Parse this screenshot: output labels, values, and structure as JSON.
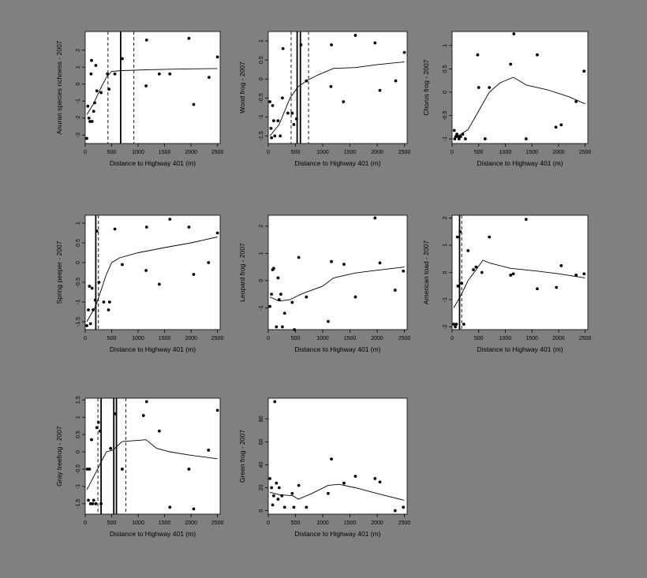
{
  "figure": {
    "background": "#808080",
    "panel_background": "#ffffff",
    "ink": "#000000"
  },
  "chart_data": [
    {
      "id": "p1",
      "type": "scatter",
      "ylabel": "Anuran species richness - 2007",
      "xlabel": "Distance to Highway 401 (m)",
      "xlim": [
        0,
        2550
      ],
      "ylim": [
        -3.5,
        3.1
      ],
      "xticks": [
        0,
        500,
        1000,
        1500,
        2000,
        2500
      ],
      "yticks": [
        -3,
        -2,
        -1,
        0,
        1,
        2
      ],
      "points": [
        [
          30,
          -3.2
        ],
        [
          50,
          -1.3
        ],
        [
          70,
          -2
        ],
        [
          90,
          -2.2
        ],
        [
          110,
          0.6
        ],
        [
          120,
          1.4
        ],
        [
          130,
          -2.2
        ],
        [
          160,
          -1.6
        ],
        [
          180,
          -1.1
        ],
        [
          200,
          1.1
        ],
        [
          220,
          -0.4
        ],
        [
          300,
          -0.5
        ],
        [
          420,
          0.6
        ],
        [
          450,
          -0.3
        ],
        [
          560,
          0.6
        ],
        [
          700,
          1.5
        ],
        [
          1150,
          -0.1
        ],
        [
          1160,
          2.6
        ],
        [
          1400,
          0.6
        ],
        [
          1600,
          0.6
        ],
        [
          1960,
          2.7
        ],
        [
          2050,
          -1.2
        ],
        [
          2340,
          0.4
        ],
        [
          2500,
          1.6
        ]
      ],
      "smooth": [
        [
          30,
          -1.8
        ],
        [
          150,
          -1.2
        ],
        [
          300,
          -0.2
        ],
        [
          400,
          0.4
        ],
        [
          500,
          0.75
        ],
        [
          700,
          0.8
        ],
        [
          1200,
          0.85
        ],
        [
          1600,
          0.88
        ],
        [
          2000,
          0.9
        ],
        [
          2500,
          0.92
        ]
      ],
      "vlines_solid": [
        670
      ],
      "vlines_dashed": [
        430,
        920
      ]
    },
    {
      "id": "p2",
      "type": "scatter",
      "ylabel": "Wood frog - 2007",
      "xlabel": "Distance to Highway 401 (m)",
      "xlim": [
        0,
        2550
      ],
      "ylim": [
        -1.7,
        1.25
      ],
      "xticks": [
        0,
        500,
        1000,
        1500,
        2000,
        2500
      ],
      "yticks": [
        -1.5,
        -1,
        -0.5,
        0,
        0.5,
        1
      ],
      "points": [
        [
          30,
          -0.6
        ],
        [
          50,
          -1.3
        ],
        [
          60,
          -1.55
        ],
        [
          80,
          -0.7
        ],
        [
          100,
          -1.1
        ],
        [
          120,
          -1.5
        ],
        [
          180,
          -1.1
        ],
        [
          220,
          -1.5
        ],
        [
          260,
          -0.5
        ],
        [
          270,
          0.8
        ],
        [
          360,
          -0.9
        ],
        [
          440,
          -0.9
        ],
        [
          470,
          -1.2
        ],
        [
          520,
          -1.05
        ],
        [
          600,
          0.9
        ],
        [
          700,
          -0.05
        ],
        [
          1150,
          -0.2
        ],
        [
          1160,
          0.9
        ],
        [
          1380,
          -0.6
        ],
        [
          1600,
          1.15
        ],
        [
          1960,
          0.95
        ],
        [
          2050,
          -0.3
        ],
        [
          2340,
          -0.05
        ],
        [
          2500,
          0.7
        ]
      ],
      "smooth": [
        [
          30,
          -1.5
        ],
        [
          200,
          -1.2
        ],
        [
          400,
          -0.5
        ],
        [
          550,
          -0.2
        ],
        [
          700,
          -0.05
        ],
        [
          900,
          0.1
        ],
        [
          1200,
          0.28
        ],
        [
          1600,
          0.3
        ],
        [
          2000,
          0.38
        ],
        [
          2500,
          0.45
        ]
      ],
      "vlines_solid": [
        530,
        590
      ],
      "vlines_dashed": [
        420,
        740
      ]
    },
    {
      "id": "p3",
      "type": "scatter",
      "ylabel": "Chorus frog - 2007",
      "xlabel": "Distance to Highway 401 (m)",
      "xlim": [
        0,
        2550
      ],
      "ylim": [
        -1.1,
        1.3
      ],
      "xticks": [
        0,
        500,
        1000,
        1500,
        2000,
        2500
      ],
      "yticks": [
        -1,
        -0.5,
        0,
        0.5,
        1
      ],
      "points": [
        [
          40,
          -0.82
        ],
        [
          50,
          -1
        ],
        [
          70,
          -0.95
        ],
        [
          90,
          -0.9
        ],
        [
          110,
          -0.95
        ],
        [
          130,
          -1
        ],
        [
          160,
          -0.95
        ],
        [
          200,
          -0.9
        ],
        [
          250,
          -1
        ],
        [
          480,
          0.8
        ],
        [
          500,
          0.1
        ],
        [
          620,
          -1
        ],
        [
          700,
          0.1
        ],
        [
          1100,
          0.6
        ],
        [
          1160,
          1.25
        ],
        [
          1390,
          -1
        ],
        [
          1600,
          0.8
        ],
        [
          1950,
          -0.75
        ],
        [
          2050,
          -0.7
        ],
        [
          2330,
          -0.2
        ],
        [
          2480,
          0.45
        ]
      ],
      "smooth": [
        [
          30,
          -1
        ],
        [
          300,
          -0.8
        ],
        [
          500,
          -0.4
        ],
        [
          700,
          0
        ],
        [
          900,
          0.2
        ],
        [
          1150,
          0.32
        ],
        [
          1400,
          0.15
        ],
        [
          1800,
          0.05
        ],
        [
          2200,
          -0.1
        ],
        [
          2500,
          -0.25
        ]
      ],
      "vlines_solid": [],
      "vlines_dashed": []
    },
    {
      "id": "p4",
      "type": "scatter",
      "ylabel": "Spring peeper - 2007",
      "xlabel": "Distance to Highway 401 (m)",
      "xlim": [
        0,
        2550
      ],
      "ylim": [
        -1.7,
        1.2
      ],
      "xticks": [
        0,
        500,
        1000,
        1500,
        2000,
        2500
      ],
      "yticks": [
        -1.5,
        -1,
        -0.5,
        0,
        0.5,
        1
      ],
      "points": [
        [
          30,
          -1.6
        ],
        [
          60,
          -1.2
        ],
        [
          80,
          -0.6
        ],
        [
          100,
          -1.55
        ],
        [
          130,
          -0.65
        ],
        [
          150,
          -1.2
        ],
        [
          190,
          -0.95
        ],
        [
          220,
          0.8
        ],
        [
          260,
          -0.5
        ],
        [
          350,
          -1.0
        ],
        [
          440,
          -1.2
        ],
        [
          460,
          -1.0
        ],
        [
          560,
          0.85
        ],
        [
          700,
          -0.05
        ],
        [
          1150,
          -0.2
        ],
        [
          1160,
          0.9
        ],
        [
          1400,
          -0.55
        ],
        [
          1600,
          1.1
        ],
        [
          1960,
          0.9
        ],
        [
          2050,
          -0.3
        ],
        [
          2330,
          0.0
        ],
        [
          2500,
          0.75
        ]
      ],
      "smooth": [
        [
          30,
          -1.5
        ],
        [
          200,
          -1.1
        ],
        [
          400,
          -0.3
        ],
        [
          500,
          0.0
        ],
        [
          650,
          0.12
        ],
        [
          1000,
          0.25
        ],
        [
          1500,
          0.38
        ],
        [
          2000,
          0.5
        ],
        [
          2500,
          0.65
        ]
      ],
      "vlines_solid": [
        200
      ],
      "vlines_dashed": [
        250
      ]
    },
    {
      "id": "p5",
      "type": "scatter",
      "ylabel": "Leopard frog - 2007",
      "xlabel": "Distance to Highway 401 (m)",
      "xlim": [
        0,
        2550
      ],
      "ylim": [
        -1.8,
        2.4
      ],
      "xticks": [
        0,
        500,
        1000,
        1500,
        2000,
        2500
      ],
      "yticks": [
        -1,
        0,
        1,
        2
      ],
      "points": [
        [
          30,
          -0.95
        ],
        [
          60,
          -0.5
        ],
        [
          80,
          0.4
        ],
        [
          100,
          0.45
        ],
        [
          150,
          -1.7
        ],
        [
          180,
          0.1
        ],
        [
          200,
          -0.7
        ],
        [
          230,
          -0.5
        ],
        [
          260,
          -1.7
        ],
        [
          300,
          -1.2
        ],
        [
          440,
          -0.8
        ],
        [
          480,
          -1.8
        ],
        [
          560,
          0.85
        ],
        [
          700,
          -0.6
        ],
        [
          1100,
          -1.5
        ],
        [
          1160,
          0.7
        ],
        [
          1390,
          0.6
        ],
        [
          1600,
          -0.6
        ],
        [
          1960,
          2.3
        ],
        [
          2050,
          0.65
        ],
        [
          2330,
          -0.35
        ],
        [
          2480,
          0.35
        ]
      ],
      "smooth": [
        [
          30,
          -0.6
        ],
        [
          200,
          -0.75
        ],
        [
          400,
          -0.7
        ],
        [
          600,
          -0.5
        ],
        [
          800,
          -0.35
        ],
        [
          1000,
          -0.2
        ],
        [
          1200,
          0.1
        ],
        [
          1600,
          0.28
        ],
        [
          2000,
          0.38
        ],
        [
          2500,
          0.5
        ]
      ],
      "vlines_solid": [],
      "vlines_dashed": []
    },
    {
      "id": "p6",
      "type": "scatter",
      "ylabel": "American toad - 2007",
      "xlabel": "Distance to Highway 401 (m)",
      "xlim": [
        0,
        2550
      ],
      "ylim": [
        -2.1,
        2.1
      ],
      "xticks": [
        0,
        500,
        1000,
        1500,
        2000,
        2500
      ],
      "yticks": [
        -2,
        -1,
        0,
        1,
        2
      ],
      "points": [
        [
          30,
          -1.9
        ],
        [
          60,
          -2
        ],
        [
          80,
          -1.9
        ],
        [
          100,
          1.3
        ],
        [
          110,
          -0.5
        ],
        [
          150,
          1.5
        ],
        [
          180,
          -0.4
        ],
        [
          220,
          -1.9
        ],
        [
          300,
          0.8
        ],
        [
          400,
          0.1
        ],
        [
          450,
          0.2
        ],
        [
          560,
          0.0
        ],
        [
          700,
          1.3
        ],
        [
          1100,
          -0.1
        ],
        [
          1150,
          -0.05
        ],
        [
          1390,
          1.95
        ],
        [
          1600,
          -0.6
        ],
        [
          1960,
          -0.55
        ],
        [
          2050,
          0.25
        ],
        [
          2330,
          -0.1
        ],
        [
          2480,
          -0.05
        ]
      ],
      "smooth": [
        [
          30,
          -1.3
        ],
        [
          150,
          -0.9
        ],
        [
          300,
          -0.3
        ],
        [
          450,
          0.1
        ],
        [
          580,
          0.45
        ],
        [
          700,
          0.35
        ],
        [
          1100,
          0.15
        ],
        [
          1600,
          0.05
        ],
        [
          2000,
          -0.05
        ],
        [
          2500,
          -0.2
        ]
      ],
      "vlines_solid": [
        140
      ],
      "vlines_dashed": [
        180
      ]
    },
    {
      "id": "p7",
      "type": "scatter",
      "ylabel": "Gray treefrog - 2007",
      "xlabel": "Distance to Highway 401 (m)",
      "xlim": [
        0,
        2550
      ],
      "ylim": [
        -1.8,
        1.55
      ],
      "xticks": [
        0,
        500,
        1000,
        1500,
        2000,
        2500
      ],
      "yticks": [
        -1.5,
        -1,
        -0.5,
        0,
        0.5,
        1,
        1.5
      ],
      "points": [
        [
          40,
          -0.5
        ],
        [
          60,
          -1.4
        ],
        [
          80,
          -0.5
        ],
        [
          100,
          -1.5
        ],
        [
          120,
          0.35
        ],
        [
          140,
          -1.5
        ],
        [
          160,
          -1.4
        ],
        [
          200,
          -1.5
        ],
        [
          220,
          0.7
        ],
        [
          250,
          0.85
        ],
        [
          280,
          0.6
        ],
        [
          300,
          -1.5
        ],
        [
          480,
          0.1
        ],
        [
          560,
          1.1
        ],
        [
          700,
          -0.5
        ],
        [
          1100,
          1.05
        ],
        [
          1160,
          1.45
        ],
        [
          1400,
          0.6
        ],
        [
          1600,
          -1.6
        ],
        [
          1960,
          -0.5
        ],
        [
          2050,
          -1.65
        ],
        [
          2330,
          0.05
        ],
        [
          2500,
          1.2
        ]
      ],
      "smooth": [
        [
          30,
          -1.1
        ],
        [
          200,
          -0.6
        ],
        [
          400,
          0.0
        ],
        [
          520,
          0.05
        ],
        [
          700,
          0.3
        ],
        [
          1150,
          0.35
        ],
        [
          1350,
          0.1
        ],
        [
          1600,
          0.0
        ],
        [
          2000,
          -0.1
        ],
        [
          2500,
          -0.2
        ]
      ],
      "vlines_solid": [
        300,
        540,
        590
      ],
      "vlines_dashed": [
        240,
        770
      ]
    },
    {
      "id": "p8",
      "type": "scatter",
      "ylabel": "Green frog - 2007",
      "xlabel": "Distance to Highway 401 (m)",
      "xlim": [
        0,
        2550
      ],
      "ylim": [
        -3,
        98
      ],
      "xticks": [
        0,
        500,
        1000,
        1500,
        2000,
        2500
      ],
      "yticks": [
        0,
        20,
        40,
        60,
        80
      ],
      "points": [
        [
          30,
          28
        ],
        [
          60,
          20
        ],
        [
          80,
          5
        ],
        [
          100,
          13
        ],
        [
          120,
          95
        ],
        [
          150,
          24
        ],
        [
          180,
          10
        ],
        [
          200,
          20
        ],
        [
          250,
          13
        ],
        [
          300,
          3
        ],
        [
          440,
          15
        ],
        [
          470,
          3
        ],
        [
          560,
          22
        ],
        [
          700,
          3
        ],
        [
          1100,
          15
        ],
        [
          1160,
          45
        ],
        [
          1390,
          24
        ],
        [
          1600,
          30
        ],
        [
          1960,
          28
        ],
        [
          2050,
          25
        ],
        [
          2330,
          0
        ],
        [
          2480,
          3
        ]
      ],
      "smooth": [
        [
          30,
          16
        ],
        [
          200,
          14
        ],
        [
          450,
          13
        ],
        [
          550,
          10
        ],
        [
          800,
          15
        ],
        [
          1100,
          22
        ],
        [
          1300,
          23
        ],
        [
          1600,
          20
        ],
        [
          2000,
          15
        ],
        [
          2500,
          9
        ]
      ],
      "vlines_solid": [],
      "vlines_dashed": []
    }
  ]
}
